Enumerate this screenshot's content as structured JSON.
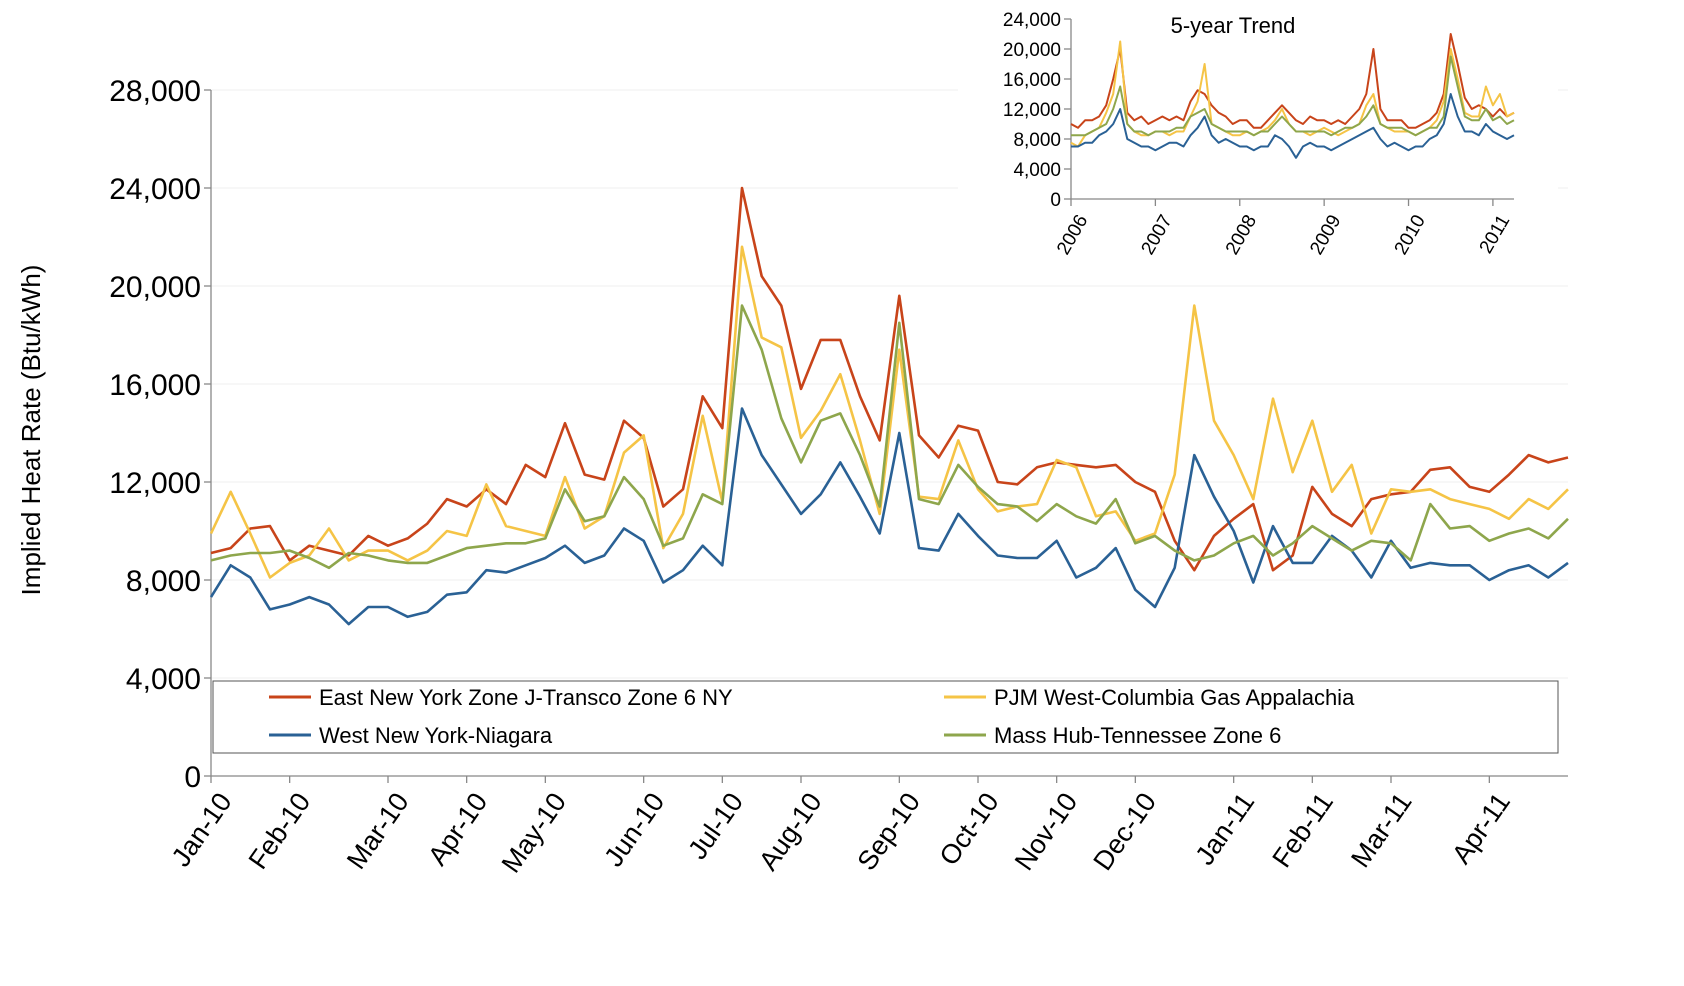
{
  "chart_data": [
    {
      "type": "line",
      "y_label": "Implied Heat Rate (Btu/kWh)",
      "categories": [
        "Jan-10",
        null,
        null,
        null,
        "Feb-10",
        null,
        null,
        null,
        null,
        "Mar-10",
        null,
        null,
        null,
        "Apr-10",
        null,
        null,
        null,
        "May-10",
        null,
        null,
        null,
        null,
        "Jun-10",
        null,
        null,
        null,
        "Jul-10",
        null,
        null,
        null,
        "Aug-10",
        null,
        null,
        null,
        null,
        "Sep-10",
        null,
        null,
        null,
        "Oct-10",
        null,
        null,
        null,
        "Nov-10",
        null,
        null,
        null,
        "Dec-10",
        null,
        null,
        null,
        null,
        "Jan-11",
        null,
        null,
        null,
        "Feb-11",
        null,
        null,
        null,
        "Mar-11",
        null,
        null,
        null,
        null,
        "Apr-11",
        null,
        null,
        null,
        null
      ],
      "series": [
        {
          "name": "East New York Zone J-Transco Zone 6 NY",
          "color": "#c8441a",
          "values": [
            9100,
            9300,
            10100,
            10200,
            8800,
            9400,
            9200,
            9000,
            9800,
            9400,
            9700,
            10300,
            11300,
            11000,
            11700,
            11100,
            12700,
            12200,
            14400,
            12300,
            12100,
            14500,
            13800,
            11000,
            11700,
            15500,
            14200,
            24000,
            20400,
            19200,
            15800,
            17800,
            17800,
            15500,
            13700,
            19600,
            13900,
            13000,
            14300,
            14100,
            12000,
            11900,
            12600,
            12800,
            12700,
            12600,
            12700,
            12000,
            11600,
            9600,
            8400,
            9800,
            10500,
            11100,
            8400,
            9000,
            11800,
            10700,
            10200,
            11300,
            11500,
            11600,
            12500,
            12600,
            11800,
            11600,
            12300,
            13100,
            12800,
            13000
          ]
        },
        {
          "name": "PJM West-Columbia Gas Appalachia",
          "color": "#f5c446",
          "values": [
            9900,
            11600,
            9900,
            8100,
            8700,
            9000,
            10100,
            8800,
            9200,
            9200,
            8800,
            9200,
            10000,
            9800,
            11900,
            10200,
            10000,
            9800,
            12200,
            10100,
            10600,
            13200,
            13900,
            9300,
            10700,
            14700,
            11200,
            21600,
            17900,
            17500,
            13800,
            14900,
            16400,
            13700,
            10700,
            17400,
            11400,
            11300,
            13700,
            11700,
            10800,
            11000,
            11100,
            12900,
            12600,
            10600,
            10800,
            9600,
            9900,
            12300,
            19200,
            14500,
            13100,
            11300,
            15400,
            12400,
            14500,
            11600,
            12700,
            9900,
            11700,
            11600,
            11700,
            11300,
            11100,
            10900,
            10500,
            11300,
            10900,
            11700
          ]
        },
        {
          "name": "West New York-Niagara",
          "color": "#2a6195",
          "values": [
            7300,
            8600,
            8100,
            6800,
            7000,
            7300,
            7000,
            6200,
            6900,
            6900,
            6500,
            6700,
            7400,
            7500,
            8400,
            8300,
            8600,
            8900,
            9400,
            8700,
            9000,
            10100,
            9600,
            7900,
            8400,
            9400,
            8600,
            15000,
            13100,
            11900,
            10700,
            11500,
            12800,
            11400,
            9900,
            14000,
            9300,
            9200,
            10700,
            9800,
            9000,
            8900,
            8900,
            9600,
            8100,
            8500,
            9300,
            7600,
            6900,
            8500,
            13100,
            11400,
            10000,
            7900,
            10200,
            8700,
            8700,
            9800,
            9200,
            8100,
            9600,
            8500,
            8700,
            8600,
            8600,
            8000,
            8400,
            8600,
            8100,
            8700
          ]
        },
        {
          "name": "Mass Hub-Tennessee Zone 6",
          "color": "#8ea64c",
          "values": [
            8800,
            9000,
            9100,
            9100,
            9200,
            8900,
            8500,
            9100,
            9000,
            8800,
            8700,
            8700,
            9000,
            9300,
            9400,
            9500,
            9500,
            9700,
            11700,
            10400,
            10600,
            12200,
            11300,
            9400,
            9700,
            11500,
            11100,
            19200,
            17400,
            14600,
            12800,
            14500,
            14800,
            13100,
            11000,
            18500,
            11300,
            11100,
            12700,
            11800,
            11100,
            11000,
            10400,
            11100,
            10600,
            10300,
            11300,
            9500,
            9800,
            9200,
            8800,
            9000,
            9500,
            9800,
            9000,
            9500,
            10200,
            9700,
            9200,
            9600,
            9500,
            8800,
            11100,
            10100,
            10200,
            9600,
            9900,
            10100,
            9700,
            10500
          ]
        }
      ],
      "ylim": [
        0,
        28000
      ],
      "yticks": [
        {
          "value": 0,
          "label": "0"
        },
        {
          "value": 4000,
          "label": "4,000"
        },
        {
          "value": 8000,
          "label": "8,000"
        },
        {
          "value": 12000,
          "label": "12,000"
        },
        {
          "value": 16000,
          "label": "16,000"
        },
        {
          "value": 20000,
          "label": "20,000"
        },
        {
          "value": 24000,
          "label": "24,000"
        },
        {
          "value": 28000,
          "label": "28,000"
        }
      ],
      "grid": true
    },
    {
      "type": "line",
      "title": "5-year Trend",
      "categories": [
        "2006",
        null,
        null,
        null,
        null,
        null,
        null,
        null,
        null,
        null,
        null,
        null,
        "2007",
        null,
        null,
        null,
        null,
        null,
        null,
        null,
        null,
        null,
        null,
        null,
        "2008",
        null,
        null,
        null,
        null,
        null,
        null,
        null,
        null,
        null,
        null,
        null,
        "2009",
        null,
        null,
        null,
        null,
        null,
        null,
        null,
        null,
        null,
        null,
        null,
        "2010",
        null,
        null,
        null,
        null,
        null,
        null,
        null,
        null,
        null,
        null,
        null,
        "2011",
        null,
        null,
        null
      ],
      "series": [
        {
          "color": "#c8441a",
          "values": [
            10000,
            9500,
            10500,
            10500,
            11000,
            12500,
            16000,
            20000,
            11500,
            10500,
            11000,
            10000,
            10500,
            11000,
            10500,
            11000,
            10500,
            13000,
            14500,
            14000,
            12500,
            11500,
            11000,
            10000,
            10500,
            10500,
            9500,
            9500,
            10500,
            11500,
            12500,
            11500,
            10500,
            10000,
            11000,
            10500,
            10500,
            10000,
            10500,
            10000,
            11000,
            12000,
            14000,
            20000,
            12000,
            10500,
            10500,
            10500,
            9500,
            9500,
            10000,
            10500,
            11500,
            14000,
            22000,
            18000,
            13500,
            12000,
            12500,
            12000,
            11000,
            12000,
            11000,
            11500
          ]
        },
        {
          "color": "#f5c446",
          "values": [
            7500,
            7000,
            8500,
            9000,
            9500,
            11500,
            14000,
            21000,
            10000,
            9000,
            8500,
            8500,
            9000,
            9000,
            8500,
            9000,
            9000,
            11000,
            13000,
            18000,
            10000,
            9500,
            9000,
            8500,
            8500,
            9000,
            8500,
            9000,
            9500,
            10500,
            12000,
            10000,
            9000,
            9000,
            8500,
            9000,
            9500,
            9000,
            8500,
            9000,
            9500,
            10000,
            12500,
            14000,
            10000,
            9500,
            9000,
            9000,
            9000,
            8500,
            9000,
            9500,
            10500,
            13000,
            20000,
            16000,
            11500,
            11000,
            11000,
            15000,
            12500,
            14000,
            11000,
            11500
          ]
        },
        {
          "color": "#2a6195",
          "values": [
            7000,
            7000,
            7500,
            7500,
            8500,
            9000,
            10000,
            12000,
            8000,
            7500,
            7000,
            7000,
            6500,
            7000,
            7500,
            7500,
            7000,
            8500,
            9500,
            11000,
            8500,
            7500,
            8000,
            7500,
            7000,
            7000,
            6500,
            7000,
            7000,
            8500,
            8000,
            7000,
            5500,
            7000,
            7500,
            7000,
            7000,
            6500,
            7000,
            7500,
            8000,
            8500,
            9000,
            9500,
            8000,
            7000,
            7500,
            7000,
            6500,
            7000,
            7000,
            8000,
            8500,
            10000,
            14000,
            11000,
            9000,
            9000,
            8500,
            10000,
            9000,
            8500,
            8000,
            8500
          ]
        },
        {
          "color": "#8ea64c",
          "values": [
            8500,
            8500,
            8500,
            9000,
            9500,
            10000,
            12000,
            15000,
            10000,
            9000,
            9000,
            8500,
            9000,
            9000,
            9000,
            9500,
            9500,
            11000,
            11500,
            12000,
            10000,
            9500,
            9000,
            9000,
            9000,
            9000,
            8500,
            9000,
            9000,
            10000,
            11000,
            10000,
            9000,
            9000,
            9000,
            9000,
            9000,
            8500,
            9000,
            9500,
            9500,
            10000,
            11000,
            12500,
            10000,
            9500,
            9500,
            9500,
            9000,
            8500,
            9000,
            9500,
            9500,
            11000,
            19000,
            15000,
            11000,
            10500,
            10500,
            12000,
            10500,
            11000,
            10000,
            10500
          ]
        }
      ],
      "ylim": [
        0,
        24000
      ],
      "yticks": [
        {
          "value": 0,
          "label": "0"
        },
        {
          "value": 4000,
          "label": "4,000"
        },
        {
          "value": 8000,
          "label": "8,000"
        },
        {
          "value": 12000,
          "label": "12,000"
        },
        {
          "value": 16000,
          "label": "16,000"
        },
        {
          "value": 20000,
          "label": "20,000"
        },
        {
          "value": 24000,
          "label": "24,000"
        }
      ],
      "grid": false
    }
  ]
}
